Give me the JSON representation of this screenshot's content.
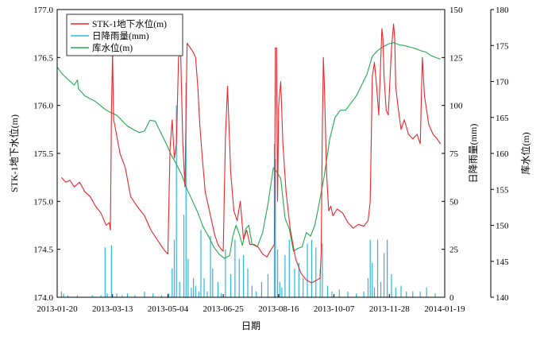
{
  "chart_data": {
    "type": "line",
    "xlabel": "日期",
    "x_ticks": [
      "2013-01-20",
      "2013-03-13",
      "2013-05-04",
      "2013-06-25",
      "2013-08-16",
      "2013-10-07",
      "2013-11-28",
      "2014-01-19"
    ],
    "x_range": [
      "2013-01-20",
      "2014-01-19"
    ],
    "y_left": {
      "label": "STK-1地下水位(m)",
      "range": [
        174.0,
        177.0
      ],
      "ticks": [
        "174.0",
        "174.5",
        "175.0",
        "175.5",
        "176.0",
        "176.5",
        "177.0"
      ]
    },
    "y_right": {
      "label": "日降雨量(mm)",
      "range": [
        0,
        150
      ],
      "ticks": [
        "0",
        "25",
        "50",
        "75",
        "100",
        "125",
        "150"
      ]
    },
    "y_right2": {
      "label": "库水位(m)",
      "range": [
        140,
        180
      ],
      "ticks": [
        "140",
        "145",
        "150",
        "155",
        "160",
        "165",
        "170",
        "175",
        "180"
      ]
    },
    "legend": {
      "position": "top-left"
    },
    "series": [
      {
        "name": "STK-1地下水位(m)",
        "axis": "left",
        "color": "#e8262b",
        "x": [
          "2013-01-24",
          "2013-01-28",
          "2013-02-01",
          "2013-02-05",
          "2013-02-10",
          "2013-02-15",
          "2013-02-20",
          "2013-02-25",
          "2013-03-02",
          "2013-03-07",
          "2013-03-10",
          "2013-03-11",
          "2013-03-12",
          "2013-03-13",
          "2013-03-14",
          "2013-03-15",
          "2013-03-20",
          "2013-03-25",
          "2013-03-30",
          "2013-04-05",
          "2013-04-12",
          "2013-04-18",
          "2013-04-24",
          "2013-04-30",
          "2013-05-04",
          "2013-05-06",
          "2013-05-08",
          "2013-05-10",
          "2013-05-12",
          "2013-05-14",
          "2013-05-16",
          "2013-05-18",
          "2013-05-20",
          "2013-05-22",
          "2013-05-25",
          "2013-05-28",
          "2013-05-30",
          "2013-06-01",
          "2013-06-03",
          "2013-06-05",
          "2013-06-08",
          "2013-06-11",
          "2013-06-14",
          "2013-06-17",
          "2013-06-20",
          "2013-06-23",
          "2013-06-25",
          "2013-06-27",
          "2013-06-29",
          "2013-07-02",
          "2013-07-05",
          "2013-07-08",
          "2013-07-11",
          "2013-07-14",
          "2013-07-17",
          "2013-07-20",
          "2013-07-24",
          "2013-07-28",
          "2013-08-01",
          "2013-08-05",
          "2013-08-09",
          "2013-08-12",
          "2013-08-13",
          "2013-08-14",
          "2013-08-15",
          "2013-08-16",
          "2013-08-18",
          "2013-08-20",
          "2013-08-23",
          "2013-08-27",
          "2013-09-01",
          "2013-09-06",
          "2013-09-11",
          "2013-09-16",
          "2013-09-21",
          "2013-09-24",
          "2013-09-25",
          "2013-09-26",
          "2013-09-27",
          "2013-09-28",
          "2013-09-30",
          "2013-10-02",
          "2013-10-04",
          "2013-10-06",
          "2013-10-10",
          "2013-10-15",
          "2013-10-20",
          "2013-10-25",
          "2013-10-30",
          "2013-11-04",
          "2013-11-08",
          "2013-11-10",
          "2013-11-12",
          "2013-11-14",
          "2013-11-16",
          "2013-11-18",
          "2013-11-21",
          "2013-11-22",
          "2013-11-23",
          "2013-11-25",
          "2013-11-27",
          "2013-11-30",
          "2013-12-02",
          "2013-12-03",
          "2013-12-04",
          "2013-12-06",
          "2013-12-09",
          "2013-12-12",
          "2013-12-16",
          "2013-12-20",
          "2013-12-24",
          "2013-12-27",
          "2013-12-29",
          "2013-12-31",
          "2014-01-04",
          "2014-01-08",
          "2014-01-12",
          "2014-01-15"
        ],
        "values": [
          175.25,
          175.2,
          175.22,
          175.15,
          175.2,
          175.1,
          175.05,
          174.95,
          174.88,
          174.75,
          174.78,
          174.7,
          175.97,
          176.55,
          175.85,
          175.8,
          175.5,
          175.35,
          175.05,
          174.95,
          174.85,
          174.7,
          174.6,
          174.5,
          174.45,
          175.55,
          175.85,
          175.45,
          175.6,
          176.5,
          176.55,
          175.6,
          175.15,
          176.65,
          176.6,
          176.55,
          176.5,
          176.2,
          175.8,
          175.5,
          175.1,
          174.95,
          174.8,
          174.65,
          174.55,
          174.5,
          174.48,
          175.65,
          176.2,
          175.3,
          174.9,
          174.8,
          175.0,
          174.6,
          174.7,
          174.55,
          174.55,
          174.52,
          174.45,
          174.42,
          174.5,
          174.55,
          176.6,
          176.6,
          175.0,
          176.0,
          176.25,
          175.6,
          175.1,
          174.7,
          174.4,
          174.25,
          174.18,
          174.15,
          174.18,
          174.2,
          174.5,
          175.7,
          176.5,
          176.2,
          175.3,
          174.9,
          174.95,
          174.85,
          174.92,
          174.88,
          174.78,
          174.72,
          174.76,
          174.74,
          174.8,
          175.0,
          176.3,
          176.45,
          176.2,
          175.9,
          176.8,
          176.7,
          176.3,
          175.95,
          175.9,
          176.6,
          176.85,
          176.7,
          176.2,
          176.0,
          175.75,
          175.85,
          175.7,
          175.65,
          175.7,
          175.6,
          176.5,
          176.1,
          175.8,
          175.7,
          175.65,
          175.6
        ]
      },
      {
        "name": "日降雨量(mm)",
        "axis": "right",
        "color": "#29b5e8",
        "x": [
          "2013-01-24",
          "2013-01-26",
          "2013-01-30",
          "2013-02-08",
          "2013-02-22",
          "2013-03-02",
          "2013-03-06",
          "2013-03-08",
          "2013-03-12",
          "2013-03-17",
          "2013-03-22",
          "2013-03-27",
          "2013-04-03",
          "2013-04-12",
          "2013-04-20",
          "2013-04-28",
          "2013-05-05",
          "2013-05-08",
          "2013-05-10",
          "2013-05-12",
          "2013-05-15",
          "2013-05-19",
          "2013-05-21",
          "2013-05-23",
          "2013-05-26",
          "2013-05-28",
          "2013-05-30",
          "2013-06-02",
          "2013-06-04",
          "2013-06-07",
          "2013-06-10",
          "2013-06-13",
          "2013-06-15",
          "2013-06-20",
          "2013-06-23",
          "2013-06-27",
          "2013-07-02",
          "2013-07-06",
          "2013-07-10",
          "2013-07-14",
          "2013-07-18",
          "2013-07-22",
          "2013-07-26",
          "2013-07-31",
          "2013-08-06",
          "2013-08-12",
          "2013-08-13",
          "2013-08-15",
          "2013-08-17",
          "2013-08-19",
          "2013-08-22",
          "2013-08-26",
          "2013-08-31",
          "2013-09-04",
          "2013-09-08",
          "2013-09-12",
          "2013-09-16",
          "2013-09-20",
          "2013-09-24",
          "2013-09-26",
          "2013-10-01",
          "2013-10-05",
          "2013-10-12",
          "2013-10-20",
          "2013-10-28",
          "2013-11-04",
          "2013-11-08",
          "2013-11-10",
          "2013-11-12",
          "2013-11-14",
          "2013-11-17",
          "2013-11-20",
          "2013-11-23",
          "2013-11-26",
          "2013-11-30",
          "2013-12-04",
          "2013-12-09",
          "2013-12-14",
          "2013-12-20",
          "2013-12-27",
          "2014-01-02",
          "2014-01-10"
        ],
        "values": [
          3,
          2,
          1,
          1,
          1,
          1,
          26,
          2,
          27,
          2,
          1,
          2,
          1,
          3,
          2,
          1,
          2,
          15,
          30,
          100,
          8,
          43,
          112,
          20,
          5,
          10,
          6,
          3,
          35,
          10,
          3,
          32,
          15,
          8,
          2,
          25,
          12,
          30,
          20,
          22,
          15,
          6,
          3,
          8,
          12,
          80,
          72,
          25,
          8,
          5,
          22,
          30,
          15,
          18,
          10,
          28,
          30,
          26,
          15,
          28,
          6,
          3,
          4,
          3,
          2,
          3,
          10,
          30,
          18,
          5,
          30,
          8,
          23,
          30,
          12,
          5,
          6,
          3,
          3,
          3,
          5,
          2
        ]
      },
      {
        "name": "库水位(m)",
        "axis": "right2",
        "color": "#23a84e",
        "x": [
          "2013-01-20",
          "2013-01-25",
          "2013-01-30",
          "2013-02-05",
          "2013-02-08",
          "2013-02-09",
          "2013-02-15",
          "2013-02-25",
          "2013-03-07",
          "2013-03-17",
          "2013-03-27",
          "2013-04-03",
          "2013-04-07",
          "2013-04-12",
          "2013-04-17",
          "2013-04-22",
          "2013-04-27",
          "2013-05-02",
          "2013-05-07",
          "2013-05-12",
          "2013-05-17",
          "2013-05-22",
          "2013-05-27",
          "2013-06-01",
          "2013-06-06",
          "2013-06-11",
          "2013-06-16",
          "2013-06-21",
          "2013-06-26",
          "2013-07-01",
          "2013-07-04",
          "2013-07-07",
          "2013-07-10",
          "2013-07-13",
          "2013-07-16",
          "2013-07-19",
          "2013-07-22",
          "2013-07-27",
          "2013-08-01",
          "2013-08-06",
          "2013-08-11",
          "2013-08-14",
          "2013-08-18",
          "2013-08-22",
          "2013-08-26",
          "2013-08-30",
          "2013-09-03",
          "2013-09-07",
          "2013-09-11",
          "2013-09-15",
          "2013-09-19",
          "2013-09-23",
          "2013-09-28",
          "2013-10-03",
          "2013-10-08",
          "2013-10-13",
          "2013-10-18",
          "2013-10-23",
          "2013-10-28",
          "2013-11-02",
          "2013-11-07",
          "2013-11-12",
          "2013-11-17",
          "2013-11-22",
          "2013-11-27",
          "2013-12-02",
          "2013-12-07",
          "2013-12-12",
          "2013-12-17",
          "2013-12-22",
          "2013-12-27",
          "2014-01-01",
          "2014-01-06",
          "2014-01-11",
          "2014-01-15"
        ],
        "values": [
          172.0,
          171.0,
          170.3,
          169.5,
          170.2,
          169.0,
          168.0,
          167.2,
          166.0,
          165.3,
          163.8,
          163.2,
          162.9,
          163.1,
          164.6,
          164.5,
          163.0,
          161.5,
          159.8,
          158.5,
          157.0,
          155.0,
          153.4,
          151.8,
          149.8,
          148.5,
          147.0,
          146.0,
          145.4,
          145.8,
          148.5,
          150.0,
          148.8,
          147.2,
          149.5,
          150.0,
          147.4,
          147.0,
          149.0,
          153.0,
          158.0,
          157.5,
          156.5,
          151.0,
          149.5,
          146.4,
          146.8,
          147.0,
          149.0,
          148.5,
          150.0,
          153.0,
          157.0,
          162.0,
          165.0,
          166.0,
          166.0,
          167.0,
          168.0,
          169.5,
          171.0,
          173.5,
          174.3,
          174.8,
          175.2,
          175.4,
          175.1,
          175.0,
          174.8,
          174.6,
          174.3,
          174.1,
          173.6,
          173.3,
          173.1
        ]
      }
    ]
  }
}
